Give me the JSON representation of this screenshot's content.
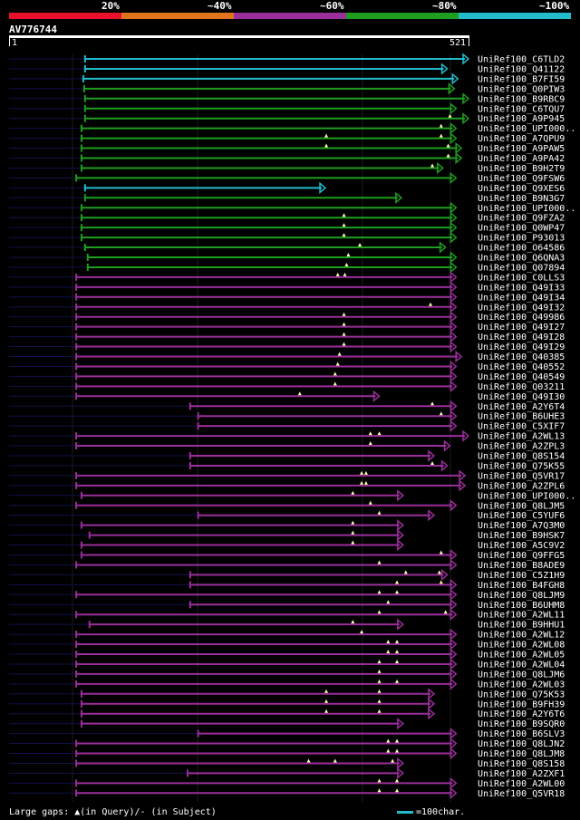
{
  "legend": {
    "segments": [
      {
        "label": "20%",
        "color": "#e8102a"
      },
      {
        "label": "~40%",
        "color": "#e0741c"
      },
      {
        "label": "~60%",
        "color": "#9a2e9a"
      },
      {
        "label": "~80%",
        "color": "#1e9e1e"
      },
      {
        "label": "~100%",
        "color": "#22bbcc"
      }
    ]
  },
  "query": {
    "name": "AV776744",
    "start": "1",
    "end": "521"
  },
  "footer": {
    "gaps_text": "Large gaps: ▲(in Query)/- (in Subject)",
    "scale_text": "=100char."
  },
  "chart_data": {
    "type": "alignment",
    "query_length": 521,
    "hits": [
      {
        "name": "UniRef100_C6TLD2",
        "start": 87,
        "end": 521,
        "identity": 100,
        "gaps": []
      },
      {
        "name": "UniRef100_Q41122",
        "start": 87,
        "end": 497,
        "identity": 100,
        "gaps": []
      },
      {
        "name": "UniRef100_B7FI59",
        "start": 85,
        "end": 509,
        "identity": 100,
        "gaps": []
      },
      {
        "name": "UniRef100_Q0PIW3",
        "start": 86,
        "end": 505,
        "identity": 80,
        "gaps": []
      },
      {
        "name": "UniRef100_B9RBC9",
        "start": 87,
        "end": 521,
        "identity": 80,
        "gaps": []
      },
      {
        "name": "UniRef100_C6TQU7",
        "start": 87,
        "end": 507,
        "identity": 80,
        "gaps": []
      },
      {
        "name": "UniRef100_A9P945",
        "start": 87,
        "end": 521,
        "identity": 80,
        "gaps": [
          500
        ]
      },
      {
        "name": "UniRef100_UPI000..",
        "start": 83,
        "end": 507,
        "identity": 80,
        "gaps": [
          490
        ]
      },
      {
        "name": "UniRef100_A7QPU9",
        "start": 83,
        "end": 507,
        "identity": 80,
        "gaps": [
          360,
          490
        ]
      },
      {
        "name": "UniRef100_A9PAW5",
        "start": 83,
        "end": 513,
        "identity": 80,
        "gaps": [
          360,
          498
        ]
      },
      {
        "name": "UniRef100_A9PA42",
        "start": 83,
        "end": 513,
        "identity": 80,
        "gaps": [
          498
        ]
      },
      {
        "name": "UniRef100_B9H2T9",
        "start": 83,
        "end": 492,
        "identity": 80,
        "gaps": [
          480
        ]
      },
      {
        "name": "UniRef100_Q9FSW6",
        "start": 77,
        "end": 507,
        "identity": 80,
        "gaps": []
      },
      {
        "name": "UniRef100_Q9XES6",
        "start": 87,
        "end": 359,
        "identity": 100,
        "gaps": []
      },
      {
        "name": "UniRef100_B9N3G7",
        "start": 87,
        "end": 445,
        "identity": 80,
        "gaps": []
      },
      {
        "name": "UniRef100_UPI000..",
        "start": 83,
        "end": 507,
        "identity": 80,
        "gaps": []
      },
      {
        "name": "UniRef100_Q9FZA2",
        "start": 83,
        "end": 507,
        "identity": 80,
        "gaps": [
          380
        ]
      },
      {
        "name": "UniRef100_Q0WP47",
        "start": 83,
        "end": 507,
        "identity": 80,
        "gaps": [
          380
        ]
      },
      {
        "name": "UniRef100_P93013",
        "start": 83,
        "end": 507,
        "identity": 80,
        "gaps": [
          380
        ]
      },
      {
        "name": "UniRef100_O64586",
        "start": 87,
        "end": 495,
        "identity": 80,
        "gaps": [
          398
        ]
      },
      {
        "name": "UniRef100_Q6QNA3",
        "start": 90,
        "end": 507,
        "identity": 80,
        "gaps": [
          385
        ]
      },
      {
        "name": "UniRef100_Q07894",
        "start": 90,
        "end": 507,
        "identity": 80,
        "gaps": [
          383
        ]
      },
      {
        "name": "UniRef100_C0LLS3",
        "start": 77,
        "end": 507,
        "identity": 60,
        "gaps": [
          373,
          381
        ]
      },
      {
        "name": "UniRef100_Q49I33",
        "start": 77,
        "end": 507,
        "identity": 60,
        "gaps": []
      },
      {
        "name": "UniRef100_Q49I34",
        "start": 77,
        "end": 507,
        "identity": 60,
        "gaps": []
      },
      {
        "name": "UniRef100_Q49I32",
        "start": 77,
        "end": 507,
        "identity": 60,
        "gaps": [
          478
        ]
      },
      {
        "name": "UniRef100_Q49986",
        "start": 77,
        "end": 507,
        "identity": 60,
        "gaps": [
          380
        ]
      },
      {
        "name": "UniRef100_Q49I27",
        "start": 77,
        "end": 507,
        "identity": 60,
        "gaps": [
          380
        ]
      },
      {
        "name": "UniRef100_Q49I28",
        "start": 77,
        "end": 507,
        "identity": 60,
        "gaps": [
          380
        ]
      },
      {
        "name": "UniRef100_Q49I29",
        "start": 77,
        "end": 507,
        "identity": 60,
        "gaps": [
          380
        ]
      },
      {
        "name": "UniRef100_Q40385",
        "start": 77,
        "end": 513,
        "identity": 60,
        "gaps": [
          375
        ]
      },
      {
        "name": "UniRef100_Q40552",
        "start": 77,
        "end": 507,
        "identity": 60,
        "gaps": [
          373
        ]
      },
      {
        "name": "UniRef100_Q40549",
        "start": 77,
        "end": 507,
        "identity": 60,
        "gaps": [
          370
        ]
      },
      {
        "name": "UniRef100_Q03211",
        "start": 77,
        "end": 507,
        "identity": 60,
        "gaps": [
          370
        ]
      },
      {
        "name": "UniRef100_Q49I30",
        "start": 77,
        "end": 420,
        "identity": 60,
        "gaps": [
          330
        ]
      },
      {
        "name": "UniRef100_A2Y6T4",
        "start": 206,
        "end": 507,
        "identity": 60,
        "gaps": [
          480
        ]
      },
      {
        "name": "UniRef100_B6UHE3",
        "start": 215,
        "end": 507,
        "identity": 60,
        "gaps": [
          490
        ]
      },
      {
        "name": "UniRef100_C5XIF7",
        "start": 215,
        "end": 507,
        "identity": 60,
        "gaps": []
      },
      {
        "name": "UniRef100_A2WL13",
        "start": 77,
        "end": 521,
        "identity": 60,
        "gaps": [
          410,
          420
        ]
      },
      {
        "name": "UniRef100_A2ZPL3",
        "start": 77,
        "end": 500,
        "identity": 60,
        "gaps": [
          410
        ]
      },
      {
        "name": "UniRef100_Q8S154",
        "start": 206,
        "end": 482,
        "identity": 60,
        "gaps": []
      },
      {
        "name": "UniRef100_Q75K55",
        "start": 206,
        "end": 497,
        "identity": 60,
        "gaps": [
          480
        ]
      },
      {
        "name": "UniRef100_Q5VR17",
        "start": 77,
        "end": 517,
        "identity": 60,
        "gaps": [
          400,
          405
        ]
      },
      {
        "name": "UniRef100_A2ZPL6",
        "start": 77,
        "end": 517,
        "identity": 60,
        "gaps": [
          400,
          405
        ]
      },
      {
        "name": "UniRef100_UPI000..",
        "start": 83,
        "end": 447,
        "identity": 60,
        "gaps": [
          390
        ]
      },
      {
        "name": "UniRef100_Q8LJM5",
        "start": 77,
        "end": 507,
        "identity": 60,
        "gaps": [
          410
        ]
      },
      {
        "name": "UniRef100_C5YUF6",
        "start": 215,
        "end": 482,
        "identity": 60,
        "gaps": [
          420
        ]
      },
      {
        "name": "UniRef100_A7Q3M0",
        "start": 83,
        "end": 447,
        "identity": 60,
        "gaps": [
          390
        ]
      },
      {
        "name": "UniRef100_B9HSK7",
        "start": 92,
        "end": 447,
        "identity": 60,
        "gaps": [
          390
        ]
      },
      {
        "name": "UniRef100_A5C9V2",
        "start": 83,
        "end": 447,
        "identity": 60,
        "gaps": [
          390
        ]
      },
      {
        "name": "UniRef100_Q9FFG5",
        "start": 83,
        "end": 507,
        "identity": 60,
        "gaps": [
          490
        ]
      },
      {
        "name": "UniRef100_B8ADE9",
        "start": 77,
        "end": 507,
        "identity": 60,
        "gaps": [
          420
        ]
      },
      {
        "name": "UniRef100_C5Z1H9",
        "start": 206,
        "end": 497,
        "identity": 60,
        "gaps": [
          450,
          488
        ]
      },
      {
        "name": "UniRef100_B4FGH8",
        "start": 206,
        "end": 507,
        "identity": 60,
        "gaps": [
          440,
          490
        ]
      },
      {
        "name": "UniRef100_Q8LJM9",
        "start": 77,
        "end": 507,
        "identity": 60,
        "gaps": [
          420,
          440
        ]
      },
      {
        "name": "UniRef100_B6UHM8",
        "start": 206,
        "end": 507,
        "identity": 60,
        "gaps": [
          430
        ]
      },
      {
        "name": "UniRef100_A2WL11",
        "start": 77,
        "end": 507,
        "identity": 60,
        "gaps": [
          420,
          495
        ]
      },
      {
        "name": "UniRef100_B9HHU1",
        "start": 92,
        "end": 447,
        "identity": 60,
        "gaps": [
          390
        ]
      },
      {
        "name": "UniRef100_A2WL12",
        "start": 77,
        "end": 507,
        "identity": 60,
        "gaps": [
          400
        ]
      },
      {
        "name": "UniRef100_A2WL08",
        "start": 77,
        "end": 507,
        "identity": 60,
        "gaps": [
          430,
          440
        ]
      },
      {
        "name": "UniRef100_A2WL05",
        "start": 77,
        "end": 507,
        "identity": 60,
        "gaps": [
          430,
          440
        ]
      },
      {
        "name": "UniRef100_A2WL04",
        "start": 77,
        "end": 507,
        "identity": 60,
        "gaps": [
          420,
          440
        ]
      },
      {
        "name": "UniRef100_Q8LJM6",
        "start": 77,
        "end": 507,
        "identity": 60,
        "gaps": [
          420
        ]
      },
      {
        "name": "UniRef100_A2WL03",
        "start": 77,
        "end": 507,
        "identity": 60,
        "gaps": [
          420,
          440
        ]
      },
      {
        "name": "UniRef100_Q75K53",
        "start": 83,
        "end": 482,
        "identity": 60,
        "gaps": [
          360,
          420
        ]
      },
      {
        "name": "UniRef100_B9FH39",
        "start": 83,
        "end": 482,
        "identity": 60,
        "gaps": [
          360,
          420
        ]
      },
      {
        "name": "UniRef100_A2Y6T6",
        "start": 83,
        "end": 482,
        "identity": 60,
        "gaps": [
          360,
          420
        ]
      },
      {
        "name": "UniRef100_B9SQR0",
        "start": 83,
        "end": 447,
        "identity": 60,
        "gaps": []
      },
      {
        "name": "UniRef100_B6SLV3",
        "start": 215,
        "end": 507,
        "identity": 60,
        "gaps": []
      },
      {
        "name": "UniRef100_Q8LJN2",
        "start": 77,
        "end": 507,
        "identity": 60,
        "gaps": [
          430,
          440
        ]
      },
      {
        "name": "UniRef100_Q8LJM8",
        "start": 77,
        "end": 507,
        "identity": 60,
        "gaps": [
          430,
          440
        ]
      },
      {
        "name": "UniRef100_Q8S158",
        "start": 77,
        "end": 447,
        "identity": 60,
        "gaps": [
          340,
          370,
          435
        ]
      },
      {
        "name": "UniRef100_A2ZXF1",
        "start": 203,
        "end": 447,
        "identity": 60,
        "gaps": []
      },
      {
        "name": "UniRef100_A2WL00",
        "start": 77,
        "end": 507,
        "identity": 60,
        "gaps": [
          420,
          440
        ]
      },
      {
        "name": "UniRef100_Q5VR18",
        "start": 77,
        "end": 507,
        "identity": 60,
        "gaps": [
          420,
          440
        ]
      }
    ]
  }
}
